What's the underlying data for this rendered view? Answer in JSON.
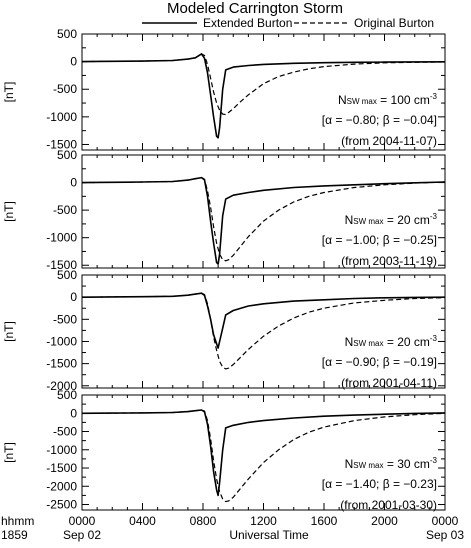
{
  "title": "Modeled Carrington Storm",
  "legend": {
    "solid_label": "Extended Burton",
    "dashed_label": "Original Burton"
  },
  "xaxis": {
    "label": "Universal Time",
    "corner_top": "hhmm",
    "corner_bottom": "1859",
    "tick_labels": [
      "0000",
      "0400",
      "0800",
      "1200",
      "1600",
      "2000",
      "0000"
    ],
    "date_labels": [
      {
        "tick": 0,
        "text": "Sep 02"
      },
      {
        "tick": 6,
        "text": "Sep 03"
      }
    ]
  },
  "ylabel": "[nT]",
  "chart_data": [
    {
      "type": "line",
      "ylim": [
        -1600,
        500
      ],
      "yticks": [
        500,
        0,
        -500,
        -1000,
        -1500
      ],
      "annotation": [
        "N",
        "SW max",
        " = 100 cm",
        "-3",
        "[α = −0.80; β = −0.04]",
        "(from 2004-11-07)"
      ],
      "series": [
        {
          "name": "Extended Burton",
          "style": "solid",
          "x": [
            0,
            2,
            4,
            6,
            7,
            7.5,
            7.9,
            8.1,
            8.3,
            8.5,
            8.7,
            8.9,
            9.0,
            9.1,
            9.3,
            9.5,
            10,
            11,
            12,
            14,
            16,
            18,
            20,
            22,
            24
          ],
          "y": [
            0,
            5,
            10,
            20,
            45,
            70,
            140,
            60,
            -200,
            -600,
            -1000,
            -1350,
            -1380,
            -1200,
            -500,
            -150,
            -100,
            -70,
            -50,
            -30,
            -20,
            -12,
            -8,
            -5,
            -3
          ]
        },
        {
          "name": "Original Burton",
          "style": "dashed",
          "x": [
            0,
            2,
            4,
            6,
            7,
            7.5,
            7.9,
            8.1,
            8.3,
            8.5,
            8.7,
            8.9,
            9.1,
            9.3,
            9.5,
            9.7,
            10,
            10.5,
            11,
            12,
            13,
            14,
            15,
            16,
            18,
            20,
            22,
            24
          ],
          "y": [
            0,
            5,
            10,
            20,
            45,
            70,
            140,
            110,
            -50,
            -300,
            -550,
            -750,
            -880,
            -950,
            -960,
            -920,
            -850,
            -720,
            -600,
            -400,
            -270,
            -190,
            -130,
            -90,
            -45,
            -22,
            -12,
            -5
          ]
        }
      ]
    },
    {
      "type": "line",
      "ylim": [
        -1550,
        500
      ],
      "yticks": [
        500,
        0,
        -500,
        -1000,
        -1500
      ],
      "annotation": [
        "N",
        "SW max",
        " = 20 cm",
        "-3",
        "[α = −1.00; β = −0.25]",
        "(from 2003-11-19)"
      ],
      "series": [
        {
          "name": "Extended Burton",
          "style": "solid",
          "x": [
            0,
            2,
            4,
            6,
            7,
            7.5,
            7.9,
            8.1,
            8.3,
            8.5,
            8.7,
            8.9,
            9.0,
            9.1,
            9.3,
            9.5,
            10,
            11,
            12,
            14,
            16,
            18,
            20,
            22,
            24
          ],
          "y": [
            0,
            5,
            10,
            20,
            45,
            70,
            90,
            50,
            -250,
            -700,
            -1100,
            -1450,
            -1480,
            -1300,
            -600,
            -300,
            -230,
            -180,
            -140,
            -90,
            -60,
            -40,
            -20,
            -5,
            10
          ]
        },
        {
          "name": "Original Burton",
          "style": "dashed",
          "x": [
            0,
            2,
            4,
            6,
            7,
            7.5,
            7.9,
            8.1,
            8.3,
            8.5,
            8.7,
            8.9,
            9.1,
            9.3,
            9.5,
            9.7,
            10,
            10.5,
            11,
            12,
            13,
            14,
            15,
            16,
            18,
            20,
            22,
            24
          ],
          "y": [
            0,
            5,
            10,
            20,
            45,
            70,
            90,
            60,
            -150,
            -450,
            -800,
            -1100,
            -1300,
            -1400,
            -1420,
            -1400,
            -1320,
            -1150,
            -980,
            -700,
            -500,
            -350,
            -250,
            -180,
            -90,
            -40,
            -10,
            10
          ]
        }
      ]
    },
    {
      "type": "line",
      "ylim": [
        -2050,
        500
      ],
      "yticks": [
        500,
        0,
        -500,
        -1000,
        -1500,
        -2000
      ],
      "annotation": [
        "N",
        "SW max",
        " = 20 cm",
        "-3",
        "[α = −0.90; β = −0.19]",
        "(from 2001-04-11)"
      ],
      "series": [
        {
          "name": "Extended Burton",
          "style": "solid",
          "x": [
            0,
            2,
            4,
            6,
            7,
            7.5,
            7.9,
            8.1,
            8.3,
            8.5,
            8.7,
            8.9,
            9.0,
            9.1,
            9.3,
            9.5,
            10,
            11,
            12,
            14,
            16,
            18,
            20,
            22,
            24
          ],
          "y": [
            0,
            5,
            10,
            20,
            45,
            70,
            90,
            40,
            -200,
            -500,
            -850,
            -1050,
            -1150,
            -1000,
            -700,
            -400,
            -300,
            -200,
            -150,
            -90,
            -60,
            -30,
            -15,
            -5,
            0
          ]
        },
        {
          "name": "Original Burton",
          "style": "dashed",
          "x": [
            0,
            2,
            4,
            6,
            7,
            7.5,
            7.9,
            8.1,
            8.3,
            8.5,
            8.7,
            8.9,
            9.1,
            9.3,
            9.5,
            9.7,
            10,
            10.5,
            11,
            12,
            13,
            14,
            15,
            16,
            18,
            20,
            22,
            24
          ],
          "y": [
            0,
            5,
            10,
            20,
            45,
            70,
            90,
            60,
            -150,
            -500,
            -900,
            -1200,
            -1450,
            -1580,
            -1620,
            -1600,
            -1520,
            -1350,
            -1180,
            -880,
            -650,
            -470,
            -340,
            -250,
            -130,
            -70,
            -30,
            -10
          ]
        }
      ]
    },
    {
      "type": "line",
      "ylim": [
        -2650,
        500
      ],
      "yticks": [
        500,
        0,
        -500,
        -1000,
        -1500,
        -2000,
        -2500
      ],
      "annotation": [
        "N",
        "SW max",
        " = 30 cm",
        "-3",
        "[α = −1.40; β = −0.23]",
        "(from 2001-03-30)"
      ],
      "series": [
        {
          "name": "Extended Burton",
          "style": "solid",
          "x": [
            0,
            2,
            4,
            6,
            7,
            7.5,
            7.9,
            8.1,
            8.3,
            8.5,
            8.7,
            8.9,
            9.0,
            9.1,
            9.3,
            9.5,
            10,
            11,
            12,
            14,
            16,
            18,
            20,
            22,
            24
          ],
          "y": [
            0,
            5,
            10,
            20,
            45,
            70,
            90,
            40,
            -300,
            -900,
            -1600,
            -2100,
            -2250,
            -1900,
            -1000,
            -400,
            -330,
            -250,
            -200,
            -130,
            -80,
            -50,
            -25,
            -5,
            10
          ]
        },
        {
          "name": "Original Burton",
          "style": "dashed",
          "x": [
            0,
            2,
            4,
            6,
            7,
            7.5,
            7.9,
            8.1,
            8.3,
            8.5,
            8.7,
            8.9,
            9.1,
            9.3,
            9.5,
            9.7,
            10,
            10.5,
            11,
            12,
            13,
            14,
            15,
            16,
            18,
            20,
            22,
            24
          ],
          "y": [
            0,
            5,
            10,
            20,
            45,
            70,
            90,
            60,
            -200,
            -700,
            -1300,
            -1800,
            -2150,
            -2350,
            -2420,
            -2400,
            -2300,
            -2050,
            -1800,
            -1350,
            -1000,
            -720,
            -520,
            -380,
            -200,
            -100,
            -40,
            0
          ]
        }
      ]
    }
  ]
}
